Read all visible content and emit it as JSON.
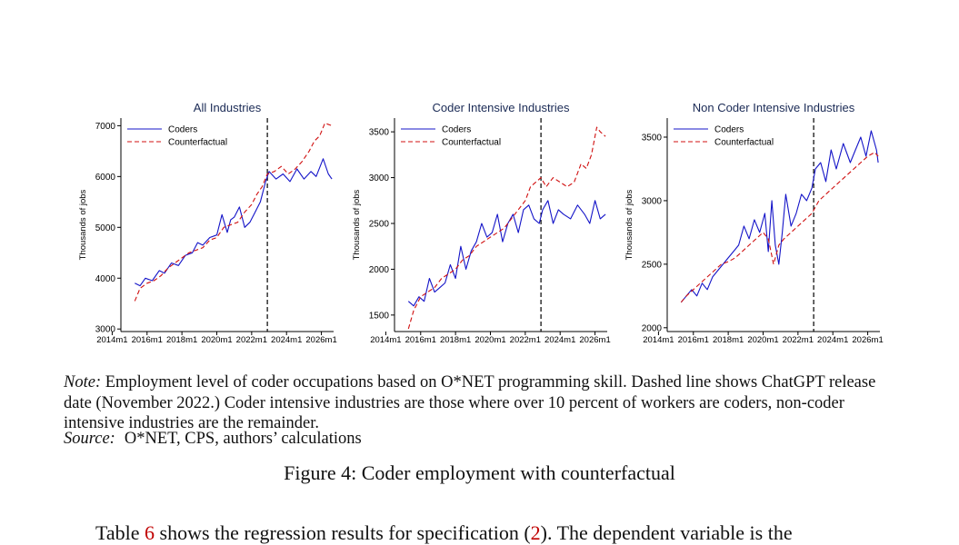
{
  "chart_data": [
    {
      "type": "line",
      "title": "All Industries",
      "ylabel": "Thousands of jobs",
      "xlabel": "",
      "ylim": [
        2950,
        7150
      ],
      "yticks": [
        3000,
        4000,
        5000,
        6000,
        7000
      ],
      "xlim": [
        2014.5,
        2026.7
      ],
      "xticks": [
        "2014m1",
        "2016m1",
        "2018m1",
        "2020m1",
        "2022m1",
        "2024m1",
        "2026m1"
      ],
      "legend_position": "top-left",
      "vline": {
        "x": 2022.9,
        "label": "ChatGPT release"
      },
      "series": [
        {
          "name": "Coders",
          "color": "#1414c8",
          "style": "solid",
          "x": [
            2015.3,
            2015.6,
            2015.9,
            2016.3,
            2016.7,
            2017.0,
            2017.4,
            2017.8,
            2018.2,
            2018.6,
            2018.9,
            2019.2,
            2019.6,
            2020.0,
            2020.3,
            2020.6,
            2020.8,
            2021.0,
            2021.3,
            2021.6,
            2021.9,
            2022.2,
            2022.5,
            2022.8,
            2023.0,
            2023.4,
            2023.8,
            2024.2,
            2024.6,
            2025.0,
            2025.4,
            2025.7,
            2026.1,
            2026.4,
            2026.6
          ],
          "y": [
            3900,
            3850,
            4000,
            3950,
            4150,
            4100,
            4300,
            4250,
            4450,
            4500,
            4700,
            4650,
            4800,
            4850,
            5250,
            4900,
            5150,
            5200,
            5400,
            5000,
            5100,
            5300,
            5500,
            5900,
            6100,
            5950,
            6050,
            5900,
            6150,
            5950,
            6100,
            6000,
            6350,
            6050,
            5950
          ]
        },
        {
          "name": "Counterfactual",
          "color": "#d01010",
          "style": "dashed",
          "x": [
            2015.3,
            2015.6,
            2016.0,
            2016.4,
            2016.8,
            2017.2,
            2017.6,
            2018.0,
            2018.4,
            2018.8,
            2019.2,
            2019.6,
            2020.0,
            2020.4,
            2020.8,
            2021.2,
            2021.6,
            2022.0,
            2022.3,
            2022.6,
            2022.9,
            2023.3,
            2023.7,
            2024.1,
            2024.5,
            2024.9,
            2025.3,
            2025.6,
            2025.9,
            2026.2,
            2026.6
          ],
          "y": [
            3550,
            3800,
            3900,
            3950,
            4050,
            4200,
            4300,
            4400,
            4500,
            4550,
            4600,
            4750,
            4800,
            5000,
            5050,
            5100,
            5300,
            5450,
            5650,
            5800,
            6050,
            6100,
            6200,
            6050,
            6150,
            6300,
            6500,
            6700,
            6800,
            7050,
            7000
          ]
        }
      ]
    },
    {
      "type": "line",
      "title": "Coder Intensive Industries",
      "ylabel": "Thousands of jobs",
      "xlabel": "",
      "ylim": [
        1320,
        3650
      ],
      "yticks": [
        1500,
        2000,
        2500,
        3000,
        3500
      ],
      "xlim": [
        2014.5,
        2026.7
      ],
      "xticks": [
        "2014m1",
        "2016m1",
        "2018m1",
        "2020m1",
        "2022m1",
        "2024m1",
        "2026m1"
      ],
      "legend_position": "top-left",
      "vline": {
        "x": 2022.9,
        "label": "ChatGPT release"
      },
      "series": [
        {
          "name": "Coders",
          "color": "#1414c8",
          "style": "solid",
          "x": [
            2015.3,
            2015.6,
            2015.9,
            2016.2,
            2016.5,
            2016.8,
            2017.1,
            2017.4,
            2017.7,
            2018.0,
            2018.3,
            2018.6,
            2018.9,
            2019.2,
            2019.5,
            2019.8,
            2020.1,
            2020.4,
            2020.7,
            2021.0,
            2021.3,
            2021.6,
            2021.9,
            2022.2,
            2022.5,
            2022.8,
            2023.0,
            2023.3,
            2023.6,
            2023.9,
            2024.2,
            2024.6,
            2025.0,
            2025.4,
            2025.7,
            2026.0,
            2026.3,
            2026.6
          ],
          "y": [
            1650,
            1600,
            1700,
            1650,
            1900,
            1750,
            1800,
            1850,
            2050,
            1900,
            2250,
            2000,
            2200,
            2300,
            2500,
            2350,
            2400,
            2600,
            2300,
            2500,
            2600,
            2400,
            2650,
            2700,
            2550,
            2500,
            2650,
            2750,
            2500,
            2650,
            2600,
            2550,
            2700,
            2600,
            2500,
            2750,
            2550,
            2600
          ]
        },
        {
          "name": "Counterfactual",
          "color": "#d01010",
          "style": "dashed",
          "x": [
            2015.3,
            2015.6,
            2016.0,
            2016.4,
            2016.8,
            2017.2,
            2017.6,
            2018.0,
            2018.4,
            2018.8,
            2019.2,
            2019.6,
            2020.0,
            2020.4,
            2020.8,
            2021.2,
            2021.6,
            2022.0,
            2022.3,
            2022.6,
            2022.9,
            2023.2,
            2023.6,
            2024.0,
            2024.4,
            2024.8,
            2025.2,
            2025.5,
            2025.8,
            2026.1,
            2026.3,
            2026.6
          ],
          "y": [
            1350,
            1550,
            1700,
            1750,
            1800,
            1900,
            1950,
            2000,
            2100,
            2150,
            2250,
            2300,
            2350,
            2400,
            2450,
            2550,
            2650,
            2750,
            2900,
            2950,
            3000,
            2900,
            3000,
            2950,
            2900,
            2950,
            3150,
            3100,
            3250,
            3550,
            3500,
            3450
          ]
        }
      ]
    },
    {
      "type": "line",
      "title": "Non Coder Intensive Industries",
      "ylabel": "Thousands of jobs",
      "xlabel": "",
      "ylim": [
        1970,
        3650
      ],
      "yticks": [
        2000,
        2500,
        3000,
        3500
      ],
      "xlim": [
        2014.5,
        2026.7
      ],
      "xticks": [
        "2014m1",
        "2016m1",
        "2018m1",
        "2020m1",
        "2022m1",
        "2024m1",
        "2026m1"
      ],
      "legend_position": "top-left",
      "vline": {
        "x": 2022.9,
        "label": "ChatGPT release"
      },
      "series": [
        {
          "name": "Coders",
          "color": "#1414c8",
          "style": "solid",
          "x": [
            2015.3,
            2015.6,
            2015.9,
            2016.2,
            2016.5,
            2016.8,
            2017.1,
            2017.4,
            2017.7,
            2018.0,
            2018.3,
            2018.6,
            2018.9,
            2019.2,
            2019.5,
            2019.8,
            2020.1,
            2020.3,
            2020.5,
            2020.7,
            2020.9,
            2021.1,
            2021.3,
            2021.6,
            2021.9,
            2022.2,
            2022.5,
            2022.8,
            2023.0,
            2023.3,
            2023.6,
            2023.9,
            2024.2,
            2024.6,
            2025.0,
            2025.3,
            2025.6,
            2025.9,
            2026.2,
            2026.5,
            2026.6
          ],
          "y": [
            2200,
            2250,
            2300,
            2250,
            2350,
            2300,
            2400,
            2450,
            2500,
            2550,
            2600,
            2650,
            2800,
            2700,
            2850,
            2750,
            2900,
            2600,
            3000,
            2650,
            2500,
            2750,
            3050,
            2800,
            2900,
            3050,
            3000,
            3100,
            3250,
            3300,
            3150,
            3400,
            3250,
            3450,
            3300,
            3400,
            3500,
            3350,
            3550,
            3400,
            3300
          ]
        },
        {
          "name": "Counterfactual",
          "color": "#d01010",
          "style": "dashed",
          "x": [
            2015.3,
            2015.6,
            2016.0,
            2016.4,
            2016.8,
            2017.2,
            2017.6,
            2018.0,
            2018.4,
            2018.8,
            2019.2,
            2019.6,
            2020.0,
            2020.3,
            2020.6,
            2020.9,
            2021.2,
            2021.6,
            2022.0,
            2022.4,
            2022.8,
            2023.2,
            2023.6,
            2024.0,
            2024.4,
            2024.8,
            2025.2,
            2025.6,
            2026.0,
            2026.4,
            2026.6
          ],
          "y": [
            2200,
            2250,
            2300,
            2350,
            2400,
            2450,
            2500,
            2520,
            2550,
            2600,
            2650,
            2700,
            2750,
            2700,
            2500,
            2650,
            2700,
            2750,
            2800,
            2850,
            2900,
            3000,
            3050,
            3100,
            3150,
            3200,
            3250,
            3300,
            3350,
            3380,
            3350
          ]
        }
      ]
    }
  ],
  "note": {
    "label": "Note:",
    "text": " Employment level of coder occupations based on O*NET programming skill. Dashed line shows ChatGPT release date (November 2022.) Coder intensive industries are those where over 10 percent of workers are coders, non-coder intensive industries are the remainder."
  },
  "source": {
    "label": "Source:",
    "text": "O*NET, CPS, authors’ calculations"
  },
  "caption": "Figure 4: Coder employment with counterfactual",
  "body": {
    "before": "Table ",
    "ref1": "6",
    "middle": " shows the regression results for specification (",
    "ref2": "2",
    "after": "). The dependent variable is the"
  }
}
